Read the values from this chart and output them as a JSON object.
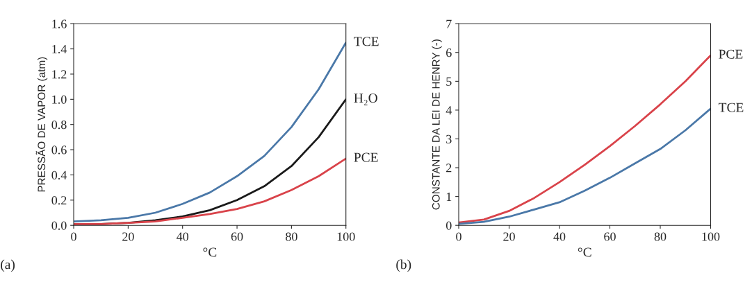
{
  "chart_data": [
    {
      "type": "line",
      "xlabel": "°C",
      "ylabel": "PRESSÃO DE VAPOR (atm)",
      "annotations": [
        "(a)"
      ],
      "x": [
        0,
        10,
        20,
        30,
        40,
        50,
        60,
        70,
        80,
        90,
        100
      ],
      "xlim": [
        0,
        100
      ],
      "xticks": [
        0,
        20,
        40,
        60,
        80,
        100
      ],
      "ylim": [
        0,
        1.6
      ],
      "yticks": [
        {
          "value": 0,
          "label": "0.0"
        },
        {
          "value": 0.2,
          "label": "0.2"
        },
        {
          "value": 0.4,
          "label": "0.4"
        },
        {
          "value": 0.6,
          "label": "0.6"
        },
        {
          "value": 0.8,
          "label": "0.8"
        },
        {
          "value": 1.0,
          "label": "1.0"
        },
        {
          "value": 1.2,
          "label": "1.2"
        },
        {
          "value": 1.4,
          "label": "1.4"
        },
        {
          "value": 1.6,
          "label": "1.6"
        }
      ],
      "grid": false,
      "series": [
        {
          "name": "TCE",
          "color": "#4a78a8",
          "values": [
            0.03,
            0.04,
            0.06,
            0.1,
            0.17,
            0.26,
            0.39,
            0.55,
            0.78,
            1.08,
            1.45
          ]
        },
        {
          "name": "H₂O",
          "color": "#1a1a1a",
          "values": [
            0.01,
            0.01,
            0.02,
            0.04,
            0.07,
            0.12,
            0.2,
            0.31,
            0.47,
            0.7,
            1.0
          ]
        },
        {
          "name": "PCE",
          "color": "#d9434a",
          "values": [
            0.01,
            0.01,
            0.02,
            0.03,
            0.06,
            0.09,
            0.13,
            0.19,
            0.28,
            0.39,
            0.53
          ]
        }
      ]
    },
    {
      "type": "line",
      "xlabel": "°C",
      "ylabel": "CONSTANTE DA LEI DE HENRY (-)",
      "annotations": [
        "(b)"
      ],
      "x": [
        0,
        10,
        20,
        30,
        40,
        50,
        60,
        70,
        80,
        90,
        100
      ],
      "xlim": [
        0,
        100
      ],
      "xticks": [
        0,
        20,
        40,
        60,
        80,
        100
      ],
      "ylim": [
        0,
        7
      ],
      "yticks": [
        0,
        1,
        2,
        3,
        4,
        5,
        6,
        7
      ],
      "grid": false,
      "series": [
        {
          "name": "PCE",
          "color": "#d9434a",
          "values": [
            0.1,
            0.2,
            0.5,
            0.95,
            1.5,
            2.1,
            2.75,
            3.45,
            4.2,
            5.0,
            5.9
          ]
        },
        {
          "name": "TCE",
          "color": "#4a78a8",
          "values": [
            0.05,
            0.12,
            0.3,
            0.55,
            0.8,
            1.2,
            1.65,
            2.15,
            2.65,
            3.3,
            4.05
          ]
        }
      ]
    }
  ]
}
